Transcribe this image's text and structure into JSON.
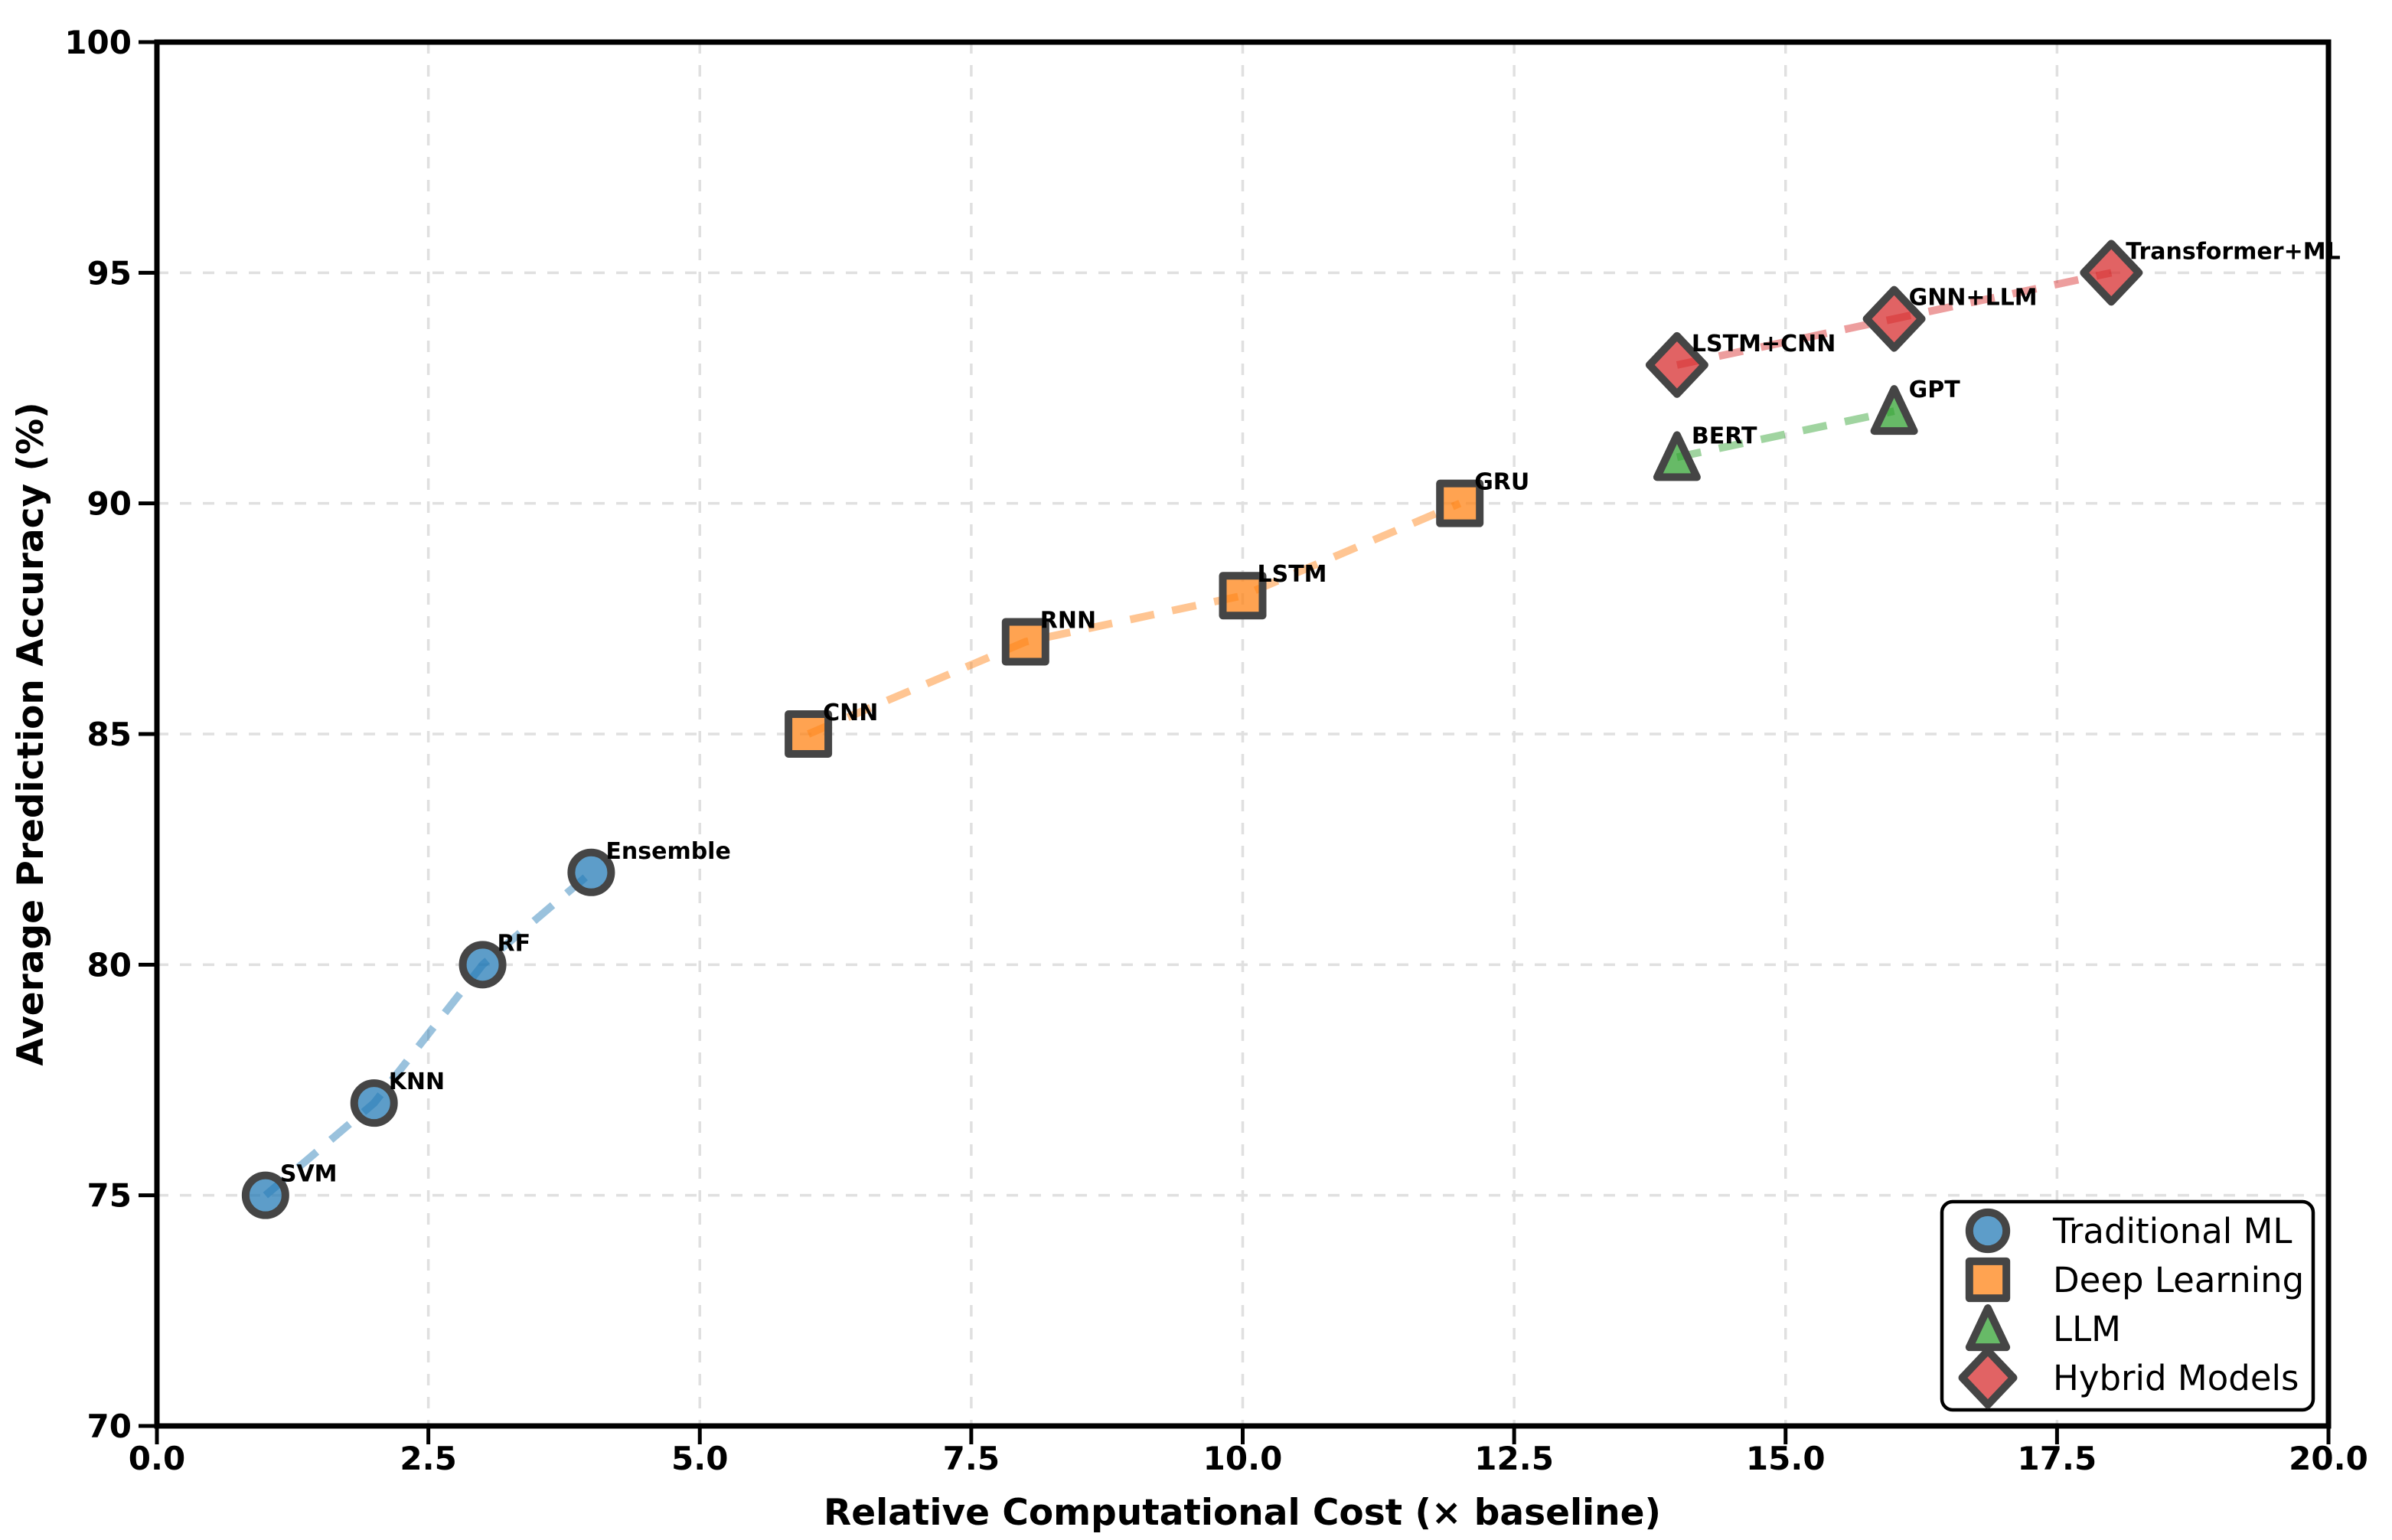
{
  "chart_data": {
    "type": "scatter",
    "title": "",
    "xlabel": "Relative Computational Cost (× baseline)",
    "ylabel": "Average Prediction Accuracy (%)",
    "xlim": [
      0,
      20
    ],
    "ylim": [
      70,
      100
    ],
    "grid": true,
    "legend_position": "lower right",
    "xticks": [
      {
        "v": 0,
        "label": "0.0"
      },
      {
        "v": 2.5,
        "label": "2.5"
      },
      {
        "v": 5,
        "label": "5.0"
      },
      {
        "v": 7.5,
        "label": "7.5"
      },
      {
        "v": 10,
        "label": "10.0"
      },
      {
        "v": 12.5,
        "label": "12.5"
      },
      {
        "v": 15,
        "label": "15.0"
      },
      {
        "v": 17.5,
        "label": "17.5"
      },
      {
        "v": 20,
        "label": "20.0"
      }
    ],
    "yticks": [
      {
        "v": 70,
        "label": "70"
      },
      {
        "v": 75,
        "label": "75"
      },
      {
        "v": 80,
        "label": "80"
      },
      {
        "v": 85,
        "label": "85"
      },
      {
        "v": 90,
        "label": "90"
      },
      {
        "v": 95,
        "label": "95"
      },
      {
        "v": 100,
        "label": "100"
      }
    ],
    "series": [
      {
        "name": "Traditional ML",
        "marker": "circle",
        "color": "#1f77b4",
        "points": [
          {
            "label": "SVM",
            "x": 1,
            "y": 75
          },
          {
            "label": "KNN",
            "x": 2,
            "y": 77
          },
          {
            "label": "RF",
            "x": 3,
            "y": 80
          },
          {
            "label": "Ensemble",
            "x": 4,
            "y": 82
          }
        ]
      },
      {
        "name": "Deep Learning",
        "marker": "square",
        "color": "#ff7f0e",
        "points": [
          {
            "label": "CNN",
            "x": 6,
            "y": 85
          },
          {
            "label": "RNN",
            "x": 8,
            "y": 87
          },
          {
            "label": "LSTM",
            "x": 10,
            "y": 88
          },
          {
            "label": "GRU",
            "x": 12,
            "y": 90
          }
        ]
      },
      {
        "name": "LLM",
        "marker": "triangle",
        "color": "#2ca02c",
        "points": [
          {
            "label": "BERT",
            "x": 14,
            "y": 91
          },
          {
            "label": "GPT",
            "x": 16,
            "y": 92
          }
        ]
      },
      {
        "name": "Hybrid Models",
        "marker": "diamond",
        "color": "#d62728",
        "points": [
          {
            "label": "LSTM+CNN",
            "x": 14,
            "y": 93
          },
          {
            "label": "GNN+LLM",
            "x": 16,
            "y": 94
          },
          {
            "label": "Transformer+ML",
            "x": 18,
            "y": 95
          }
        ]
      }
    ],
    "style": {
      "marker_edge_color": "#454545",
      "grid_color": "#e0e0e0",
      "spine_color": "#000000",
      "background": "#ffffff",
      "line_style": "dashed"
    }
  }
}
